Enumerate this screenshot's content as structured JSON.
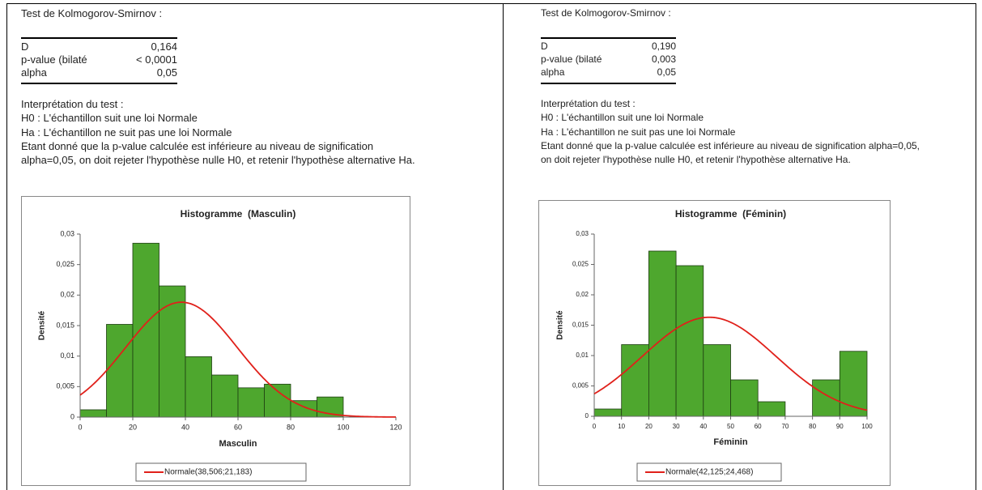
{
  "panels": [
    {
      "test_title": "Test de Kolmogorov-Smirnov :",
      "table": {
        "rows": [
          [
            "D",
            "0,164"
          ],
          [
            "p-value (bilaté",
            "< 0,0001"
          ],
          [
            "alpha",
            "0,05"
          ]
        ]
      },
      "interpretation": [
        "Interprétation du test :",
        "H0 : L'échantillon suit une loi Normale",
        "Ha : L'échantillon ne suit pas une loi Normale",
        "Etant donné que la p-value calculée est inférieure au niveau de signification",
        "alpha=0,05, on doit rejeter l'hypothèse nulle H0, et retenir l'hypothèse alternative Ha."
      ]
    },
    {
      "test_title": "Test de Kolmogorov-Smirnov :",
      "table": {
        "rows": [
          [
            "D",
            "0,190"
          ],
          [
            "p-value (bilaté",
            "0,003"
          ],
          [
            "alpha",
            "0,05"
          ]
        ]
      },
      "interpretation": [
        "Interprétation du test :",
        "H0 : L'échantillon suit une loi Normale",
        "Ha : L'échantillon ne suit pas une loi Normale",
        "Etant donné que la p-value calculée est inférieure au niveau de signification alpha=0,05,",
        "on doit rejeter l'hypothèse nulle H0, et retenir l'hypothèse alternative Ha."
      ]
    }
  ],
  "chart_data": [
    {
      "type": "histogram",
      "title": "Histogramme  (Masculin)",
      "x_label": "Masculin",
      "y_label": "Densité",
      "bins": [
        0,
        10,
        20,
        30,
        40,
        50,
        60,
        70,
        80,
        90,
        100
      ],
      "values": [
        0.0012,
        0.0152,
        0.0285,
        0.0215,
        0.0099,
        0.0069,
        0.0048,
        0.0054,
        0.0027,
        0.0033
      ],
      "color": "#4ea72e",
      "normal": {
        "name": "Normale(38,506;21,183)",
        "mean": 38.506,
        "sd": 21.183,
        "color": "#e0201a"
      },
      "xlim": [
        0,
        120
      ],
      "xticks": [
        0,
        20,
        40,
        60,
        80,
        100,
        120
      ],
      "ylim": [
        0,
        0.03
      ],
      "yticks": [
        0,
        {
          "value": 0.005,
          "label": "0,005"
        },
        {
          "value": 0.01,
          "label": "0,01"
        },
        {
          "value": 0.015,
          "label": "0,015"
        },
        {
          "value": 0.02,
          "label": "0,02"
        },
        {
          "value": 0.025,
          "label": "0,025"
        },
        {
          "value": 0.03,
          "label": "0,03"
        }
      ]
    },
    {
      "type": "histogram",
      "title": "Histogramme  (Féminin)",
      "x_label": "Féminin",
      "y_label": "Densité",
      "bins": [
        0,
        10,
        20,
        30,
        40,
        50,
        60,
        70,
        80,
        90,
        100
      ],
      "values": [
        0.0012,
        0.0118,
        0.0272,
        0.0248,
        0.0118,
        0.006,
        0.0024,
        0,
        0.006,
        0.0107
      ],
      "color": "#4ea72e",
      "normal": {
        "name": "Normale(42,125;24,468)",
        "mean": 42.125,
        "sd": 24.468,
        "color": "#e0201a"
      },
      "xlim": [
        0,
        100
      ],
      "xticks": [
        0,
        10,
        20,
        30,
        40,
        50,
        60,
        70,
        80,
        90,
        100
      ],
      "ylim": [
        0,
        0.03
      ],
      "yticks": [
        0,
        {
          "value": 0.005,
          "label": "0,005"
        },
        {
          "value": 0.01,
          "label": "0,01"
        },
        {
          "value": 0.015,
          "label": "0,015"
        },
        {
          "value": 0.02,
          "label": "0,02"
        },
        {
          "value": 0.025,
          "label": "0,025"
        },
        {
          "value": 0.03,
          "label": "0,03"
        }
      ]
    }
  ]
}
